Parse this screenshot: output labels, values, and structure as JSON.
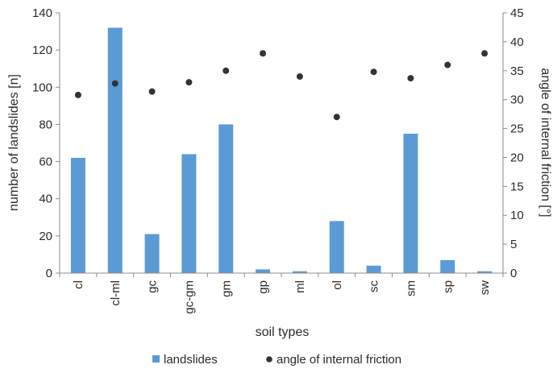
{
  "chart_data": {
    "type": "bar",
    "title": "",
    "xlabel": "soil types",
    "ylabel": "number of landslides [n]",
    "y2label": "angle of internal friction [°]",
    "categories": [
      "cl",
      "cl-ml",
      "gc",
      "gc-gm",
      "gm",
      "gp",
      "ml",
      "ol",
      "sc",
      "sm",
      "sp",
      "sw"
    ],
    "ylim": [
      0,
      140
    ],
    "yticks": [
      "0",
      "20",
      "40",
      "60",
      "80",
      "100",
      "120",
      "140"
    ],
    "y2lim": [
      0,
      45
    ],
    "y2ticks": [
      "0",
      "5",
      "10",
      "15",
      "20",
      "25",
      "30",
      "35",
      "40",
      "45"
    ],
    "grid": false,
    "legend_position": "bottom",
    "series": [
      {
        "name": "landslides",
        "kind": "bar",
        "axis": "left",
        "color": "#5b9bd5",
        "values": [
          62,
          132,
          21,
          64,
          80,
          2,
          1,
          28,
          4,
          75,
          7,
          1
        ]
      },
      {
        "name": "angle of internal friction",
        "kind": "scatter",
        "axis": "right",
        "color": "#333333",
        "values": [
          30.8,
          32.8,
          31.4,
          33.0,
          35.0,
          38.0,
          34.0,
          27.0,
          34.8,
          33.7,
          36.0,
          38.0
        ]
      }
    ]
  }
}
